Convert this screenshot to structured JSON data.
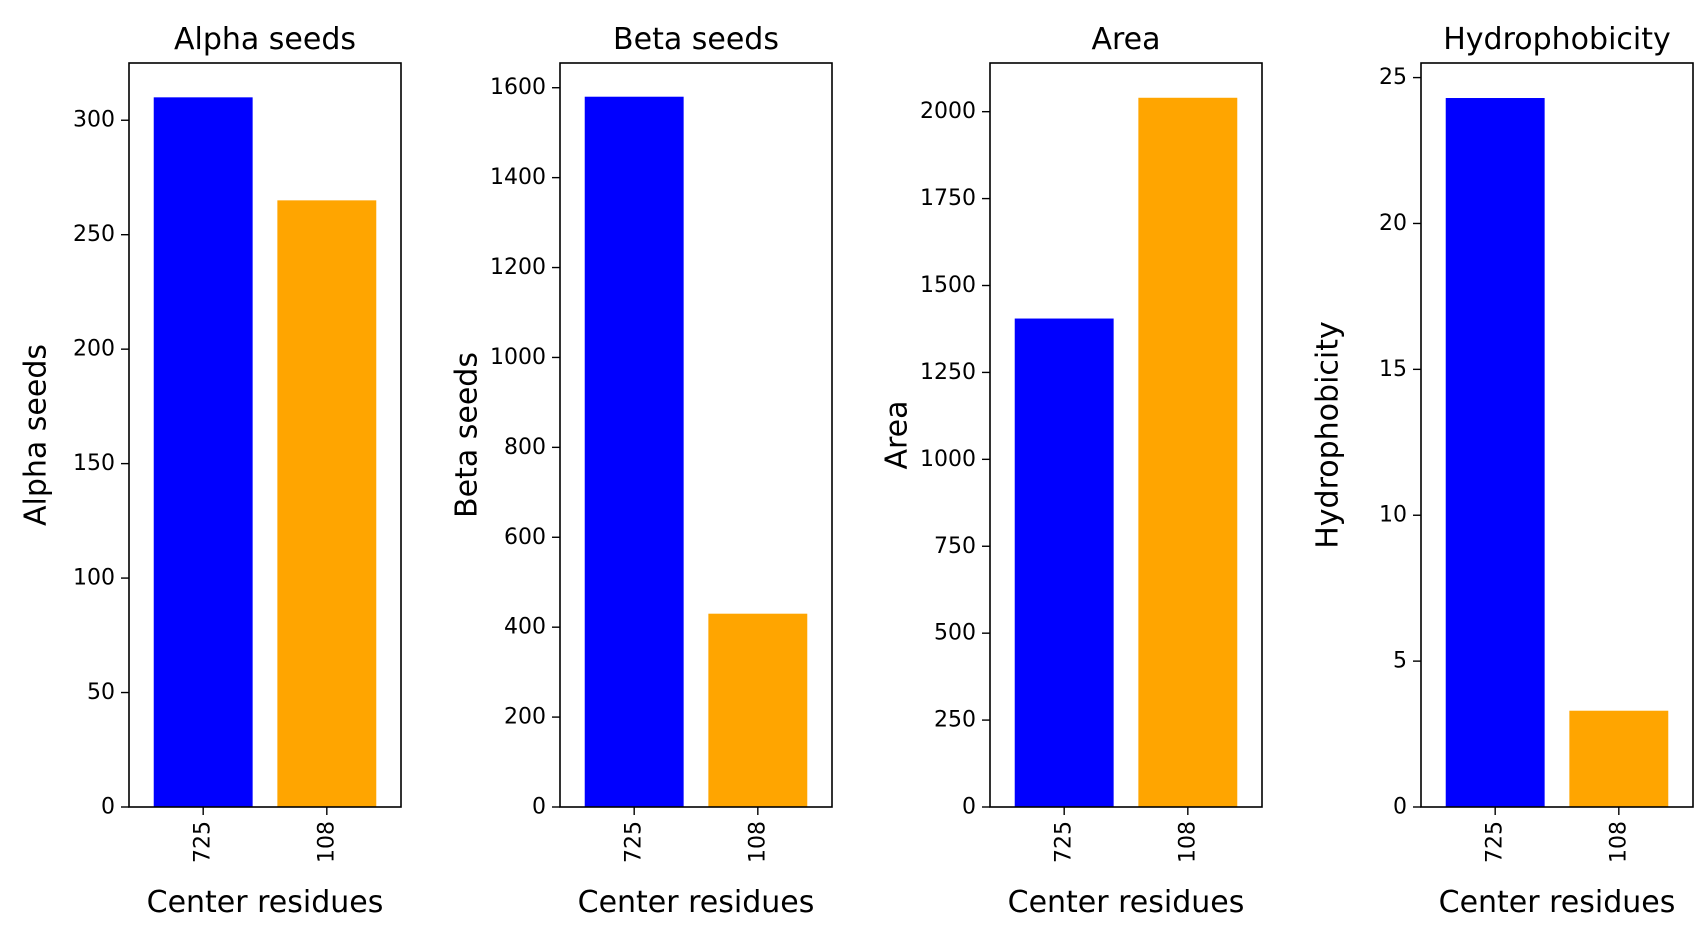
{
  "chart_data": [
    {
      "type": "bar",
      "title": "Alpha seeds",
      "xlabel": "Center residues",
      "ylabel": "Alpha seeds",
      "categories": [
        "725",
        "108"
      ],
      "values": [
        310,
        265
      ],
      "colors": [
        "#0000ff",
        "#ffa500"
      ],
      "ylim": [
        0,
        325
      ],
      "yticks": [
        0,
        50,
        100,
        150,
        200,
        250,
        300
      ],
      "xtick_rotation": 90,
      "grid": false
    },
    {
      "type": "bar",
      "title": "Beta seeds",
      "xlabel": "Center residues",
      "ylabel": "Beta seeds",
      "categories": [
        "725",
        "108"
      ],
      "values": [
        1580,
        430
      ],
      "colors": [
        "#0000ff",
        "#ffa500"
      ],
      "ylim": [
        0,
        1655
      ],
      "yticks": [
        0,
        200,
        400,
        600,
        800,
        1000,
        1200,
        1400,
        1600
      ],
      "xtick_rotation": 90,
      "grid": false
    },
    {
      "type": "bar",
      "title": "Area",
      "xlabel": "Center residues",
      "ylabel": "Area",
      "categories": [
        "725",
        "108"
      ],
      "values": [
        1405,
        2040
      ],
      "colors": [
        "#0000ff",
        "#ffa500"
      ],
      "ylim": [
        0,
        2140
      ],
      "yticks": [
        0,
        250,
        500,
        750,
        1000,
        1250,
        1500,
        1750,
        2000
      ],
      "xtick_rotation": 90,
      "grid": false
    },
    {
      "type": "bar",
      "title": "Hydrophobicity",
      "xlabel": "Center residues",
      "ylabel": "Hydrophobicity",
      "categories": [
        "725",
        "108"
      ],
      "values": [
        24.3,
        3.3
      ],
      "colors": [
        "#0000ff",
        "#ffa500"
      ],
      "ylim": [
        0,
        25.5
      ],
      "yticks": [
        0,
        5,
        10,
        15,
        20,
        25
      ],
      "xtick_rotation": 90,
      "grid": false
    }
  ]
}
